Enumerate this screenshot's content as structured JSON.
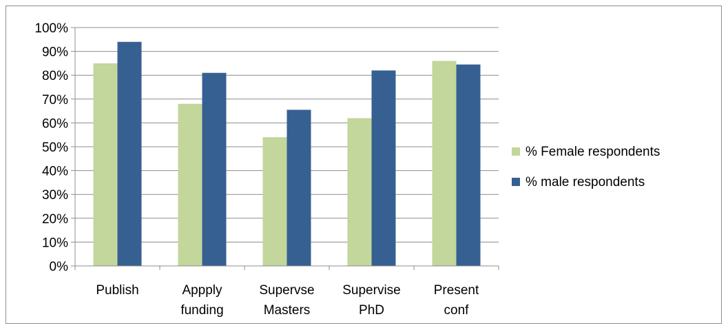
{
  "chart_data": {
    "type": "bar",
    "categories": [
      [
        "Publish"
      ],
      [
        "Appply",
        "funding"
      ],
      [
        "Supervse",
        "Masters"
      ],
      [
        "Supervise",
        "PhD"
      ],
      [
        "Present",
        "conf"
      ]
    ],
    "series": [
      {
        "name": "% Female respondents",
        "color": "#c3d69b",
        "values": [
          85,
          68,
          54,
          62,
          86
        ]
      },
      {
        "name": "% male respondents",
        "color": "#376092",
        "values": [
          94,
          81,
          65.5,
          82,
          84.5
        ]
      }
    ],
    "ylim": [
      0,
      100
    ],
    "y_ticks": [
      "0%",
      "10%",
      "20%",
      "30%",
      "40%",
      "50%",
      "60%",
      "70%",
      "80%",
      "90%",
      "100%"
    ],
    "grid": true,
    "legend_position": "right"
  }
}
